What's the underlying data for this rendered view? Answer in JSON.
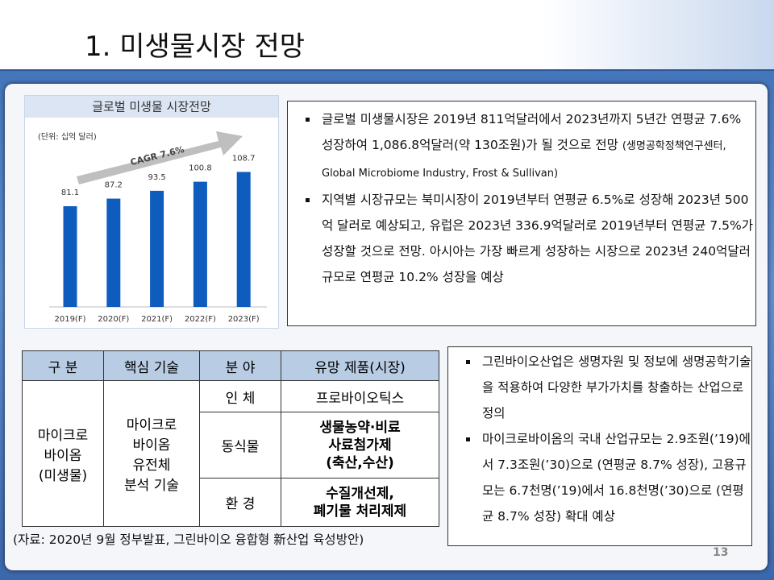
{
  "slide": {
    "title": "1. 미생물시장 전망",
    "page_number": "13"
  },
  "chart_data": {
    "type": "bar",
    "title": "글로벌 미생물 시장전망",
    "subtitle": "(단위: 십억 달러)",
    "annotation": "CAGR 7.6%",
    "categories": [
      "2019(F)",
      "2020(F)",
      "2021(F)",
      "2022(F)",
      "2023(F)"
    ],
    "values": [
      81.1,
      87.2,
      93.5,
      100.8,
      108.7
    ],
    "color": "#0f5cbf",
    "ylim": [
      0,
      120
    ]
  },
  "box1": {
    "bullets": [
      {
        "text": "글로벌 미생물시장은 2019년 811억달러에서 2023년까지 5년간 연평균 7.6% 성장하여 1,086.8억달러(약 130조원)가 될 것으로 전망",
        "source": "(생명공학정책연구센터, Global Microbiome Industry, Frost & Sullivan)"
      },
      {
        "text": "지역별 시장규모는 북미시장이 2019년부터 연평균 6.5%로 성장해  2023년 500억 달러로 예상되고, 유럽은 2023년 336.9억달러로 2019년부터 연평균 7.5%가 성장할 것으로 전망. 아시아는 가장 빠르게 성장하는 시장으로 2023년 240억달러 규모로 연평균 10.2% 성장을 예상"
      }
    ]
  },
  "table": {
    "header": [
      "구 분",
      "핵심 기술",
      "분 야",
      "유망 제품(시장)"
    ],
    "group": "마이크로\n바이옴\n(미생물)",
    "technology": "마이크로\n바이옴\n유전체\n분석 기술",
    "rows": [
      {
        "field": "인 체",
        "products": "프로바이오틱스"
      },
      {
        "field": "동식물",
        "products": "생물농약·비료\n사료첨가제\n(축산,수산)"
      },
      {
        "field": "환 경",
        "products": "수질개선제,\n폐기물 처리제제"
      }
    ]
  },
  "box2": {
    "bullets": [
      "그린바이오산업은 생명자원 및 정보에 생명공학기술을 적용하여 다양한 부가가치를 창출하는 산업으로 정의",
      "마이크로바이옴의 국내 산업규모는 2.9조원(’19)에서 7.3조원(’30)으로 (연평균 8.7% 성장), 고용규모는 6.7천명(’19)에서 16.8천명(’30)으로 (연평균 8.7% 성장) 확대 예상"
    ]
  },
  "source_note": "(자료: 2020년 9월 정부발표, 그린바이오 융합형 新산업 육성방안)"
}
